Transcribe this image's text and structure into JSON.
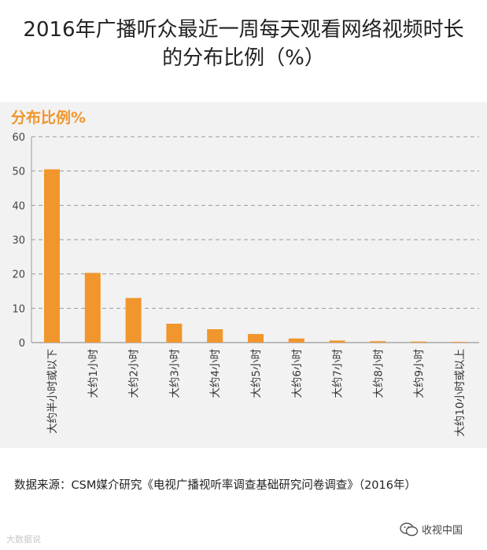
{
  "title_line1": "2016年广播听众最近一周每天观看网络视频时长",
  "title_line2": "的分布比例（%）",
  "source": "数据来源：CSM媒介研究《电视广播视听率调查基础研究问卷调查》（2016年）",
  "watermark_left": "大数据说",
  "watermark_right": "收视中国",
  "colors": {
    "bar": "#f0962d",
    "ylabel": "#f0962d",
    "panel": "#f2f2f2"
  },
  "chart_data": {
    "type": "bar",
    "ylabel": "分布比例%",
    "ylim": [
      0,
      60
    ],
    "yticks": [
      0,
      10,
      20,
      30,
      40,
      50,
      60
    ],
    "grid": true,
    "categories": [
      "大约半小时或以下",
      "大约1小时",
      "大约2小时",
      "大约3小时",
      "大约4小时",
      "大约5小时",
      "大约6小时",
      "大约7小时",
      "大约8小时",
      "大约9小时",
      "大约10小时或以上"
    ],
    "values": [
      50.5,
      20.3,
      13.0,
      5.5,
      3.9,
      2.5,
      1.2,
      0.6,
      0.4,
      0.3,
      0.2
    ]
  }
}
